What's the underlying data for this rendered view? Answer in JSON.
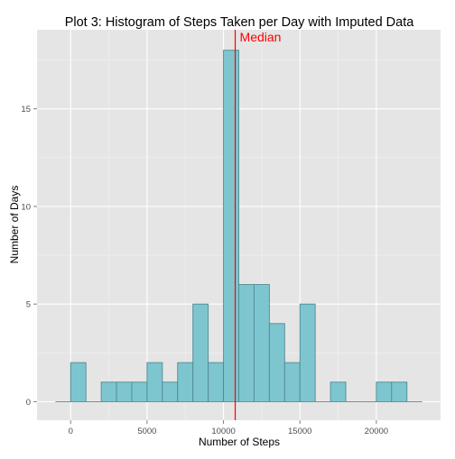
{
  "chart_data": {
    "type": "bar",
    "title": "Plot 3: Histogram of Steps Taken per Day with Imputed Data",
    "xlabel": "Number of Steps",
    "ylabel": "Number of Days",
    "binwidth": 1000,
    "xlim": [
      -1000,
      23000
    ],
    "ylim": [
      0,
      19
    ],
    "x_ticks": [
      0,
      5000,
      10000,
      15000,
      20000
    ],
    "y_ticks": [
      0,
      5,
      10,
      15
    ],
    "bins": [
      {
        "x0": -1000,
        "x1": 0,
        "count": 0
      },
      {
        "x0": 0,
        "x1": 1000,
        "count": 2
      },
      {
        "x0": 1000,
        "x1": 2000,
        "count": 0
      },
      {
        "x0": 2000,
        "x1": 3000,
        "count": 1
      },
      {
        "x0": 3000,
        "x1": 4000,
        "count": 1
      },
      {
        "x0": 4000,
        "x1": 5000,
        "count": 1
      },
      {
        "x0": 5000,
        "x1": 6000,
        "count": 2
      },
      {
        "x0": 6000,
        "x1": 7000,
        "count": 1
      },
      {
        "x0": 7000,
        "x1": 8000,
        "count": 2
      },
      {
        "x0": 8000,
        "x1": 9000,
        "count": 5
      },
      {
        "x0": 9000,
        "x1": 10000,
        "count": 2
      },
      {
        "x0": 10000,
        "x1": 11000,
        "count": 18
      },
      {
        "x0": 11000,
        "x1": 12000,
        "count": 6
      },
      {
        "x0": 12000,
        "x1": 13000,
        "count": 6
      },
      {
        "x0": 13000,
        "x1": 14000,
        "count": 4
      },
      {
        "x0": 14000,
        "x1": 15000,
        "count": 2
      },
      {
        "x0": 15000,
        "x1": 16000,
        "count": 5
      },
      {
        "x0": 16000,
        "x1": 17000,
        "count": 0
      },
      {
        "x0": 17000,
        "x1": 18000,
        "count": 1
      },
      {
        "x0": 18000,
        "x1": 19000,
        "count": 0
      },
      {
        "x0": 19000,
        "x1": 20000,
        "count": 0
      },
      {
        "x0": 20000,
        "x1": 21000,
        "count": 1
      },
      {
        "x0": 21000,
        "x1": 22000,
        "count": 1
      },
      {
        "x0": 22000,
        "x1": 23000,
        "count": 0
      }
    ],
    "median": {
      "value": 10766,
      "label": "Median",
      "color": "#ff0000"
    },
    "grid": true,
    "colors": {
      "panel": "#e5e5e5",
      "grid_major": "#ffffff",
      "grid_minor": "#f2f2f2",
      "bar_fill": "#7ec6cf",
      "bar_stroke": "#4f8a93"
    }
  }
}
